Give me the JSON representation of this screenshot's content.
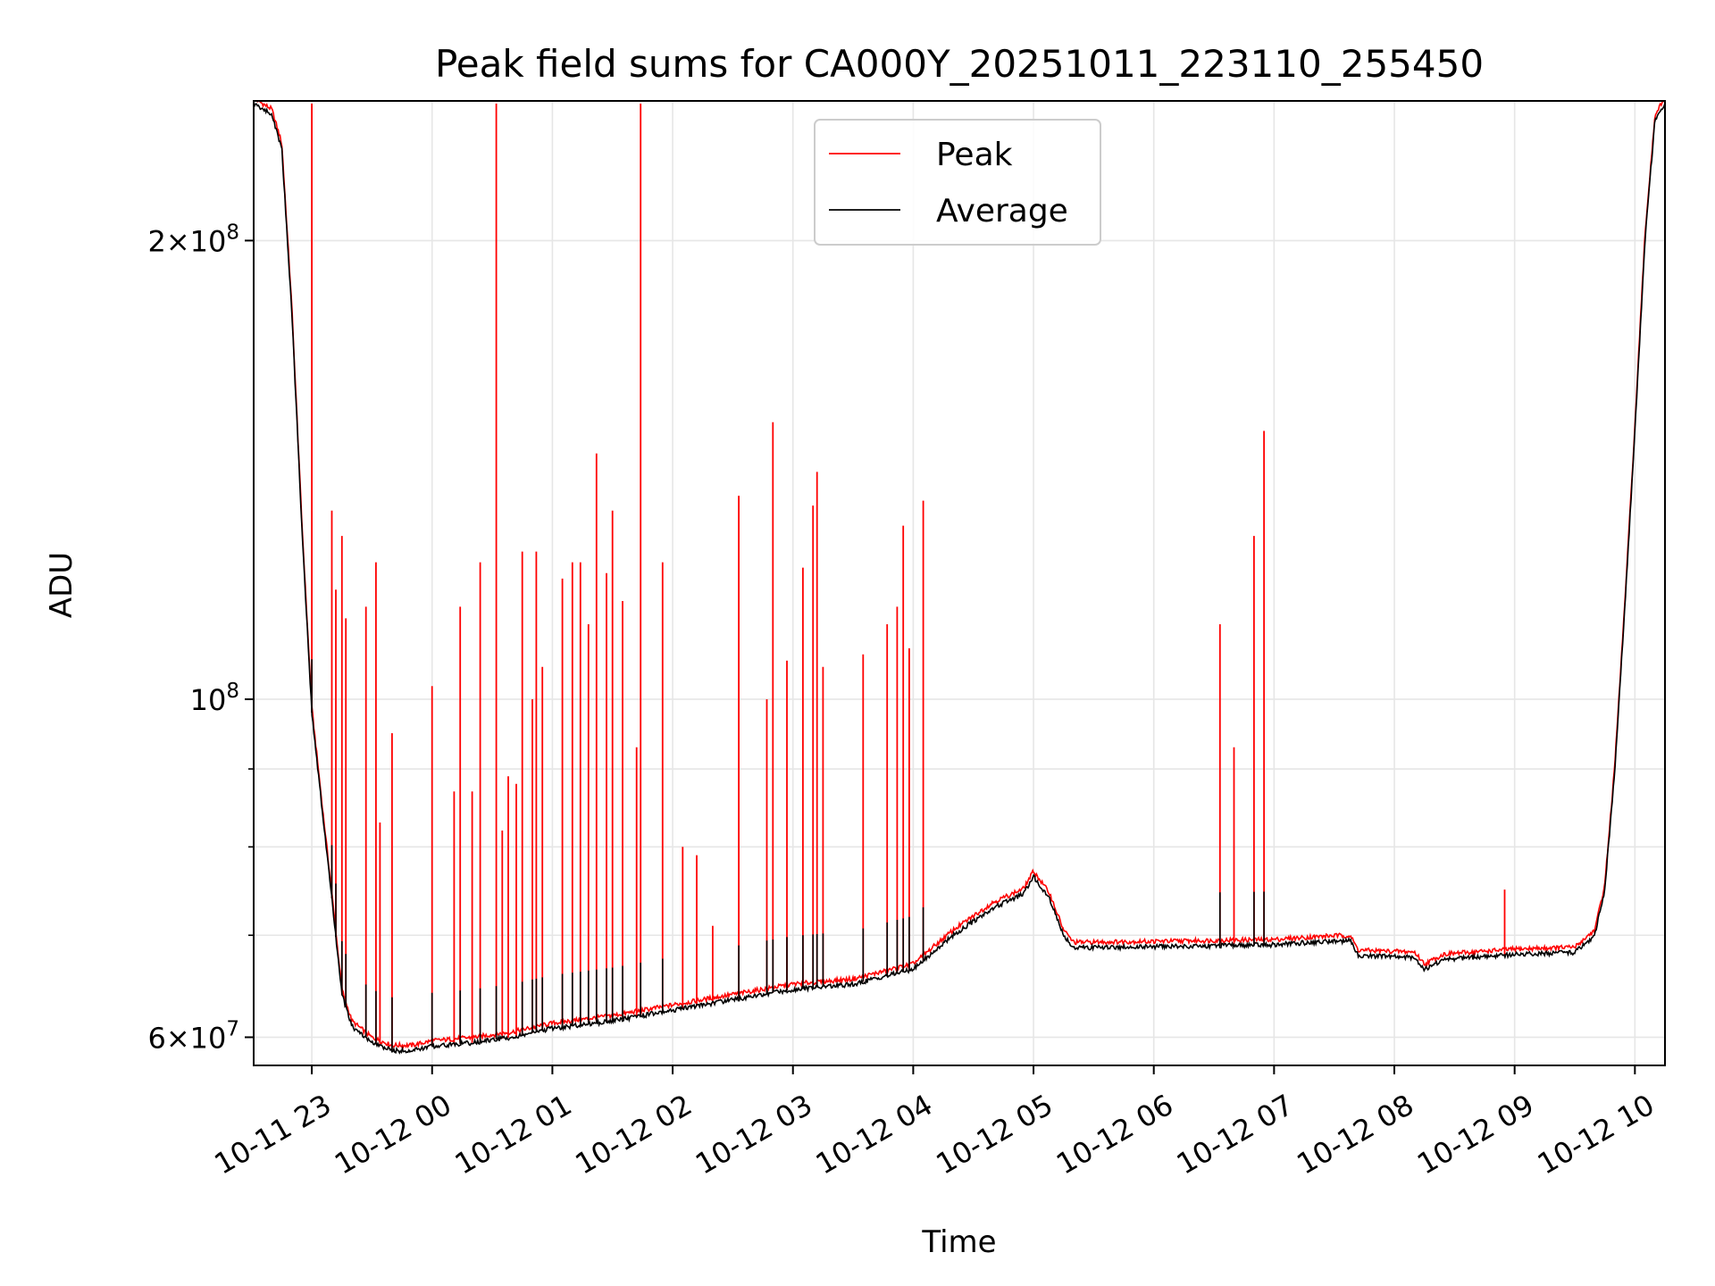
{
  "chart_data": {
    "type": "line",
    "title": "Peak field sums for CA000Y_20251011_223110_255450",
    "xlabel": "Time",
    "ylabel": "ADU",
    "yscale": "log",
    "ylim": [
      57500000,
      247000000
    ],
    "xlim": [
      "2025-10-11 22:31",
      "2025-10-12 10:15"
    ],
    "grid": true,
    "legend_position": "top-center",
    "x_ticks": [
      {
        "t": "2025-10-11 23:00",
        "label": "10-11 23"
      },
      {
        "t": "2025-10-12 00:00",
        "label": "10-12 00"
      },
      {
        "t": "2025-10-12 01:00",
        "label": "10-12 01"
      },
      {
        "t": "2025-10-12 02:00",
        "label": "10-12 02"
      },
      {
        "t": "2025-10-12 03:00",
        "label": "10-12 03"
      },
      {
        "t": "2025-10-12 04:00",
        "label": "10-12 04"
      },
      {
        "t": "2025-10-12 05:00",
        "label": "10-12 05"
      },
      {
        "t": "2025-10-12 06:00",
        "label": "10-12 06"
      },
      {
        "t": "2025-10-12 07:00",
        "label": "10-12 07"
      },
      {
        "t": "2025-10-12 08:00",
        "label": "10-12 08"
      },
      {
        "t": "2025-10-12 09:00",
        "label": "10-12 09"
      },
      {
        "t": "2025-10-12 10:00",
        "label": "10-12 10"
      }
    ],
    "y_ticks": [
      {
        "value": 200000000,
        "mantissa": "2",
        "exponent": "8"
      },
      {
        "value": 100000000,
        "mantissa": "",
        "exponent": "8"
      },
      {
        "value": 60000000,
        "mantissa": "6",
        "exponent": "7"
      }
    ],
    "y_minor_ticks": [
      70000000,
      80000000,
      90000000
    ],
    "series": [
      {
        "name": "Average",
        "color": "#000000",
        "points": [
          [
            "2025-10-11 22:31",
            246000000
          ],
          [
            "2025-10-11 22:40",
            242000000
          ],
          [
            "2025-10-11 22:45",
            230000000
          ],
          [
            "2025-10-11 22:50",
            180000000
          ],
          [
            "2025-10-11 22:55",
            130000000
          ],
          [
            "2025-10-11 23:00",
            98000000
          ],
          [
            "2025-10-11 23:05",
            85000000
          ],
          [
            "2025-10-11 23:10",
            74000000
          ],
          [
            "2025-10-11 23:15",
            64000000
          ],
          [
            "2025-10-11 23:20",
            61000000
          ],
          [
            "2025-10-11 23:30",
            59500000
          ],
          [
            "2025-10-11 23:40",
            58800000
          ],
          [
            "2025-10-11 23:50",
            58800000
          ],
          [
            "2025-10-12 00:00",
            59200000
          ],
          [
            "2025-10-12 00:20",
            59500000
          ],
          [
            "2025-10-12 00:40",
            60000000
          ],
          [
            "2025-10-12 01:00",
            60800000
          ],
          [
            "2025-10-12 01:30",
            61500000
          ],
          [
            "2025-10-12 02:00",
            62500000
          ],
          [
            "2025-10-12 02:30",
            63500000
          ],
          [
            "2025-10-12 03:00",
            64500000
          ],
          [
            "2025-10-12 03:30",
            65000000
          ],
          [
            "2025-10-12 04:00",
            66500000
          ],
          [
            "2025-10-12 04:20",
            70000000
          ],
          [
            "2025-10-12 04:40",
            73000000
          ],
          [
            "2025-10-12 04:55",
            74500000
          ],
          [
            "2025-10-12 05:00",
            76500000
          ],
          [
            "2025-10-12 05:08",
            74000000
          ],
          [
            "2025-10-12 05:15",
            70000000
          ],
          [
            "2025-10-12 05:20",
            68700000
          ],
          [
            "2025-10-12 06:00",
            68800000
          ],
          [
            "2025-10-12 07:00",
            69000000
          ],
          [
            "2025-10-12 07:30",
            69400000
          ],
          [
            "2025-10-12 07:38",
            69400000
          ],
          [
            "2025-10-12 07:42",
            67900000
          ],
          [
            "2025-10-12 08:10",
            67700000
          ],
          [
            "2025-10-12 08:15",
            66500000
          ],
          [
            "2025-10-12 08:25",
            67500000
          ],
          [
            "2025-10-12 09:00",
            68000000
          ],
          [
            "2025-10-12 09:30",
            68200000
          ],
          [
            "2025-10-12 09:40",
            70000000
          ],
          [
            "2025-10-12 09:45",
            75000000
          ],
          [
            "2025-10-12 09:50",
            90000000
          ],
          [
            "2025-10-12 09:55",
            115000000
          ],
          [
            "2025-10-12 10:00",
            150000000
          ],
          [
            "2025-10-12 10:05",
            200000000
          ],
          [
            "2025-10-12 10:10",
            240000000
          ],
          [
            "2025-10-12 10:15",
            246000000
          ]
        ]
      },
      {
        "name": "Peak",
        "color": "#ff0000",
        "spikes": [
          [
            "2025-10-11 23:00",
            246000000
          ],
          [
            "2025-10-11 23:10",
            133000000
          ],
          [
            "2025-10-11 23:12",
            118000000
          ],
          [
            "2025-10-11 23:15",
            128000000
          ],
          [
            "2025-10-11 23:17",
            113000000
          ],
          [
            "2025-10-11 23:27",
            115000000
          ],
          [
            "2025-10-11 23:32",
            123000000
          ],
          [
            "2025-10-11 23:34",
            83000000
          ],
          [
            "2025-10-11 23:40",
            95000000
          ],
          [
            "2025-10-12 00:00",
            102000000
          ],
          [
            "2025-10-12 00:11",
            87000000
          ],
          [
            "2025-10-12 00:14",
            115000000
          ],
          [
            "2025-10-12 00:20",
            87000000
          ],
          [
            "2025-10-12 00:24",
            123000000
          ],
          [
            "2025-10-12 00:32",
            246000000
          ],
          [
            "2025-10-12 00:35",
            82000000
          ],
          [
            "2025-10-12 00:38",
            89000000
          ],
          [
            "2025-10-12 00:42",
            88000000
          ],
          [
            "2025-10-12 00:45",
            125000000
          ],
          [
            "2025-10-12 00:50",
            100000000
          ],
          [
            "2025-10-12 00:52",
            125000000
          ],
          [
            "2025-10-12 00:55",
            105000000
          ],
          [
            "2025-10-12 01:05",
            120000000
          ],
          [
            "2025-10-12 01:10",
            123000000
          ],
          [
            "2025-10-12 01:14",
            123000000
          ],
          [
            "2025-10-12 01:18",
            112000000
          ],
          [
            "2025-10-12 01:22",
            145000000
          ],
          [
            "2025-10-12 01:27",
            121000000
          ],
          [
            "2025-10-12 01:30",
            133000000
          ],
          [
            "2025-10-12 01:35",
            116000000
          ],
          [
            "2025-10-12 01:42",
            93000000
          ],
          [
            "2025-10-12 01:44",
            246000000
          ],
          [
            "2025-10-12 01:55",
            123000000
          ],
          [
            "2025-10-12 02:05",
            80000000
          ],
          [
            "2025-10-12 02:12",
            79000000
          ],
          [
            "2025-10-12 02:20",
            71000000
          ],
          [
            "2025-10-12 02:33",
            136000000
          ],
          [
            "2025-10-12 02:47",
            100000000
          ],
          [
            "2025-10-12 02:50",
            152000000
          ],
          [
            "2025-10-12 02:57",
            106000000
          ],
          [
            "2025-10-12 03:05",
            122000000
          ],
          [
            "2025-10-12 03:10",
            134000000
          ],
          [
            "2025-10-12 03:12",
            141000000
          ],
          [
            "2025-10-12 03:15",
            105000000
          ],
          [
            "2025-10-12 03:35",
            107000000
          ],
          [
            "2025-10-12 03:47",
            112000000
          ],
          [
            "2025-10-12 03:52",
            115000000
          ],
          [
            "2025-10-12 03:55",
            130000000
          ],
          [
            "2025-10-12 03:58",
            108000000
          ],
          [
            "2025-10-12 04:05",
            135000000
          ],
          [
            "2025-10-12 06:33",
            112000000
          ],
          [
            "2025-10-12 06:40",
            93000000
          ],
          [
            "2025-10-12 06:50",
            128000000
          ],
          [
            "2025-10-12 06:55",
            150000000
          ],
          [
            "2025-10-12 08:55",
            75000000
          ]
        ]
      }
    ]
  }
}
